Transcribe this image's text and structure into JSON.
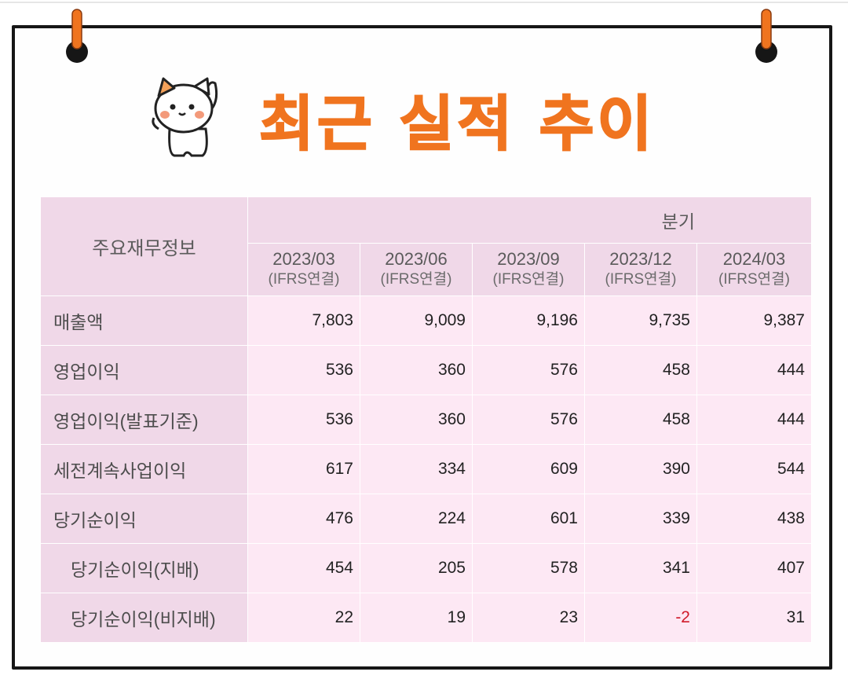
{
  "title": "최근 실적 추이",
  "table": {
    "corner_label": "주요재무정보",
    "period_group": "분기",
    "columns": [
      {
        "period": "2023/03",
        "basis": "(IFRS연결)"
      },
      {
        "period": "2023/06",
        "basis": "(IFRS연결)"
      },
      {
        "period": "2023/09",
        "basis": "(IFRS연결)"
      },
      {
        "period": "2023/12",
        "basis": "(IFRS연결)"
      },
      {
        "period": "2024/03",
        "basis": "(IFRS연결)"
      }
    ],
    "rows": [
      {
        "label": "매출액",
        "values": [
          "7,803",
          "9,009",
          "9,196",
          "9,735",
          "9,387"
        ]
      },
      {
        "label": "영업이익",
        "values": [
          "536",
          "360",
          "576",
          "458",
          "444"
        ]
      },
      {
        "label": "영업이익(발표기준)",
        "values": [
          "536",
          "360",
          "576",
          "458",
          "444"
        ]
      },
      {
        "label": "세전계속사업이익",
        "values": [
          "617",
          "334",
          "609",
          "390",
          "544"
        ]
      },
      {
        "label": "당기순이익",
        "values": [
          "476",
          "224",
          "601",
          "339",
          "438"
        ]
      },
      {
        "label": "당기순이익(지배)",
        "values": [
          "454",
          "205",
          "578",
          "341",
          "407"
        ]
      },
      {
        "label": "당기순이익(비지배)",
        "values": [
          "22",
          "19",
          "23",
          "-2",
          "31"
        ]
      }
    ]
  },
  "colors": {
    "title": "#f0741f",
    "header_bg": "#f0d8e8",
    "cell_bg": "#fde8f4",
    "negative": "#d01a2a",
    "frame": "#161616",
    "pin": "#f0741f"
  },
  "icons": {
    "mascot": "cat-mascot-icon",
    "pin": "pushpin-icon"
  }
}
